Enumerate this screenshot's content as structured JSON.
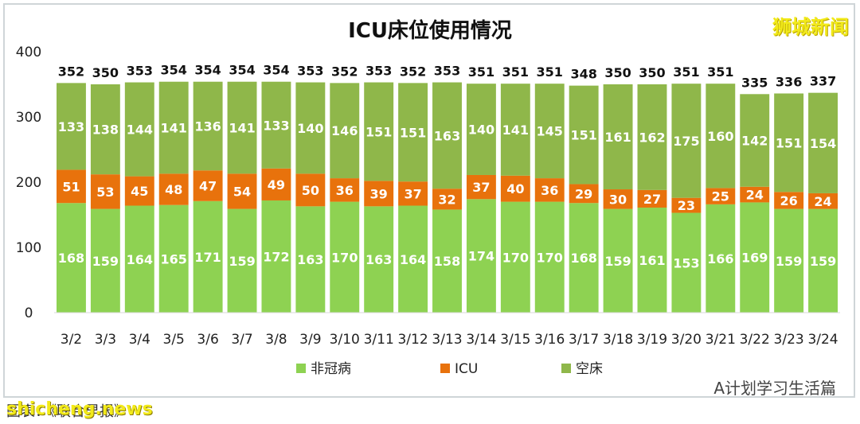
{
  "brand": "狮城新闻",
  "source": "图表：《联合早报》",
  "watermark": "shicheng.news",
  "wechat": "A计划学习生活篇",
  "chart_data": {
    "type": "bar",
    "stacked": true,
    "title": "ICU床位使用情况",
    "categories": [
      "3/2",
      "3/3",
      "3/4",
      "3/5",
      "3/6",
      "3/7",
      "3/8",
      "3/9",
      "3/10",
      "3/11",
      "3/12",
      "3/13",
      "3/14",
      "3/15",
      "3/16",
      "3/17",
      "3/18",
      "3/19",
      "3/20",
      "3/21",
      "3/22",
      "3/23",
      "3/24"
    ],
    "series": [
      {
        "name": "非冠病",
        "color": "#8ed252",
        "values": [
          168,
          159,
          164,
          165,
          171,
          159,
          172,
          163,
          170,
          163,
          164,
          158,
          174,
          170,
          170,
          168,
          159,
          161,
          153,
          166,
          169,
          159,
          159
        ]
      },
      {
        "name": "ICU",
        "color": "#e8720c",
        "values": [
          51,
          53,
          45,
          48,
          47,
          54,
          49,
          50,
          36,
          39,
          37,
          32,
          37,
          40,
          36,
          29,
          30,
          27,
          23,
          25,
          24,
          26,
          24
        ]
      },
      {
        "name": "空床",
        "color": "#8fb74a",
        "values": [
          133,
          138,
          144,
          141,
          136,
          141,
          133,
          140,
          146,
          151,
          151,
          163,
          140,
          141,
          145,
          151,
          161,
          162,
          175,
          160,
          142,
          151,
          154
        ]
      }
    ],
    "totals": [
      352,
      350,
      353,
      354,
      354,
      354,
      354,
      353,
      352,
      353,
      352,
      353,
      351,
      351,
      351,
      348,
      350,
      350,
      351,
      351,
      335,
      336,
      337
    ],
    "ylim": [
      0,
      400
    ],
    "yticks": [
      0,
      100,
      200,
      300,
      400
    ],
    "legend_position": "bottom",
    "grid": false
  }
}
